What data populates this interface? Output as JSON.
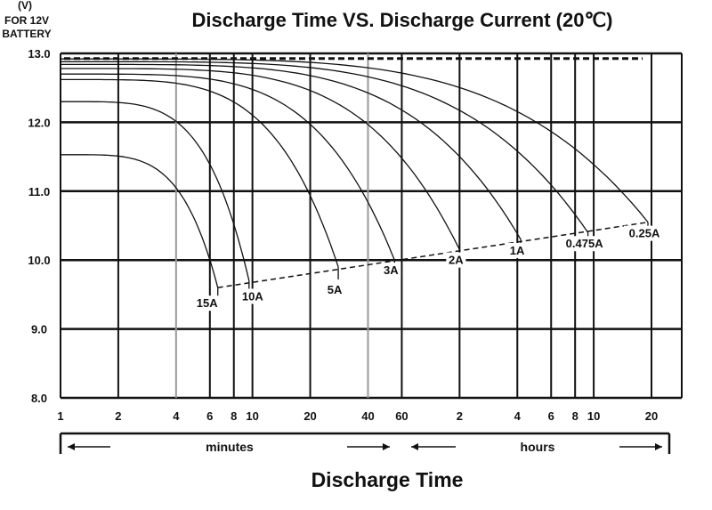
{
  "chart_data": {
    "type": "line",
    "title": "Discharge Time VS. Discharge Current (20℃)",
    "ylabel": "(V)",
    "ylabel_note_1": "FOR 12V",
    "ylabel_note_2": "BATTERY",
    "xlabel": "Discharge Time",
    "x_scale": "log",
    "ylim": [
      8.0,
      13.0
    ],
    "y_ticks": [
      "8.0",
      "9.0",
      "10.0",
      "11.0",
      "12.0",
      "13.0"
    ],
    "x_ticks": [
      {
        "label": "1",
        "minutes": 1
      },
      {
        "label": "2",
        "minutes": 2
      },
      {
        "label": "4",
        "minutes": 4
      },
      {
        "label": "6",
        "minutes": 6
      },
      {
        "label": "8",
        "minutes": 8
      },
      {
        "label": "10",
        "minutes": 10
      },
      {
        "label": "20",
        "minutes": 20
      },
      {
        "label": "40",
        "minutes": 40
      },
      {
        "label": "60",
        "minutes": 60
      },
      {
        "label": "2",
        "minutes": 120
      },
      {
        "label": "4",
        "minutes": 240
      },
      {
        "label": "6",
        "minutes": 360
      },
      {
        "label": "8",
        "minutes": 480
      },
      {
        "label": "10",
        "minutes": 600
      },
      {
        "label": "20",
        "minutes": 1200
      }
    ],
    "ranges": [
      {
        "label": "minutes",
        "from_minutes": 1,
        "to_minutes": 60
      },
      {
        "label": "hours",
        "from_minutes": 60,
        "to_minutes": 1200
      }
    ],
    "grid": true,
    "series": [
      {
        "name": "15A",
        "start_v": 11.53,
        "end_minutes": 6.6,
        "end_v": 9.6
      },
      {
        "name": "10A",
        "start_v": 12.3,
        "end_minutes": 9.6,
        "end_v": 9.7
      },
      {
        "name": "5A",
        "start_v": 12.62,
        "end_minutes": 28,
        "end_v": 9.9
      },
      {
        "name": "3A",
        "start_v": 12.7,
        "end_minutes": 55,
        "end_v": 10.0
      },
      {
        "name": "2A",
        "start_v": 12.78,
        "end_minutes": 120,
        "end_v": 10.15
      },
      {
        "name": "1A",
        "start_v": 12.84,
        "end_minutes": 250,
        "end_v": 10.3
      },
      {
        "name": "0.475A",
        "start_v": 12.88,
        "end_minutes": 560,
        "end_v": 10.4
      },
      {
        "name": "0.25A",
        "start_v": 12.92,
        "end_minutes": 1150,
        "end_v": 10.55
      }
    ],
    "cutoff_line": {
      "style": "dashed",
      "from": {
        "minutes": 6.6,
        "v": 9.6
      },
      "to": {
        "minutes": 1150,
        "v": 10.55
      }
    },
    "float_line": {
      "style": "dashed",
      "v": 12.9
    }
  }
}
